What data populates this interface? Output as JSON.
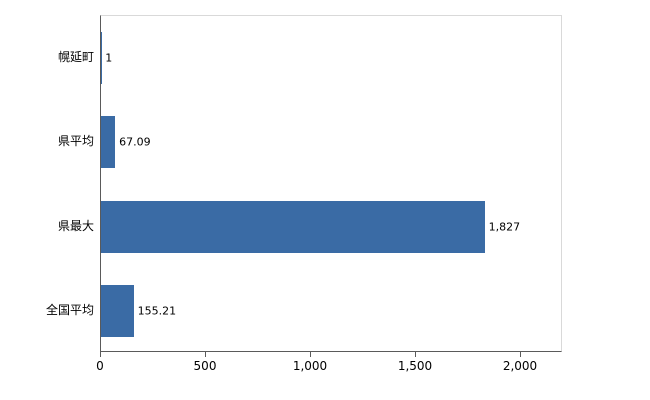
{
  "chart_data": {
    "type": "bar",
    "orientation": "horizontal",
    "title": "",
    "xlabel": "",
    "ylabel": "",
    "categories": [
      "幌延町",
      "県平均",
      "県最大",
      "全国平均"
    ],
    "values": [
      1,
      67.09,
      1827,
      155.21
    ],
    "value_labels": [
      "1",
      "67.09",
      "1,827",
      "155.21"
    ],
    "x_ticks": [
      0,
      500,
      1000,
      1500,
      2000
    ],
    "xlim": [
      0,
      2200
    ],
    "grid": false,
    "legend": false,
    "bar_color": "#3a6ba5",
    "axis_color": "#5a5a5a",
    "border_color": "#d9d9d9",
    "background_color": "#ffffff"
  }
}
